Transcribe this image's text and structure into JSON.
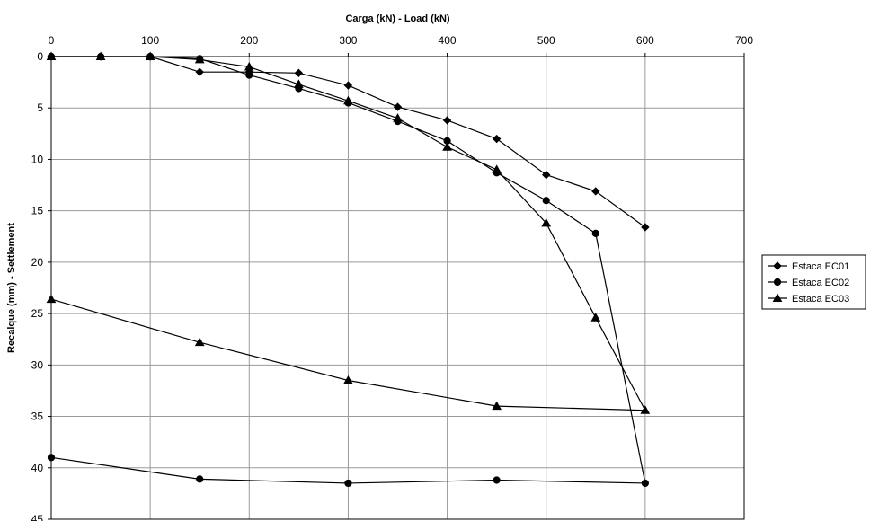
{
  "chart_data": {
    "type": "line",
    "title": "",
    "xlabel": "Carga (kN) - Load (kN)",
    "ylabel": "Recalque (mm) - Settlement",
    "xlim": [
      0,
      700
    ],
    "ylim": [
      0,
      45
    ],
    "y_inverted": true,
    "x_axis_position": "top",
    "xticks": [
      "0",
      "100",
      "200",
      "300",
      "400",
      "500",
      "600",
      "700"
    ],
    "yticks": [
      "0",
      "5",
      "10",
      "15",
      "20",
      "25",
      "30",
      "35",
      "40",
      "45"
    ],
    "grid": true,
    "legend_position": "right",
    "series": [
      {
        "name": "Estaca EC01",
        "marker": "diamond",
        "color": "#000000",
        "points": [
          [
            0,
            0
          ],
          [
            50,
            0
          ],
          [
            100,
            0
          ],
          [
            150,
            1.5
          ],
          [
            200,
            1.5
          ],
          [
            250,
            1.6
          ],
          [
            300,
            2.8
          ],
          [
            350,
            4.9
          ],
          [
            400,
            6.2
          ],
          [
            450,
            8.0
          ],
          [
            500,
            11.5
          ],
          [
            550,
            13.1
          ],
          [
            600,
            16.6
          ]
        ]
      },
      {
        "name": "Estaca EC02",
        "marker": "circle",
        "color": "#000000",
        "points": [
          [
            0,
            0
          ],
          [
            50,
            0
          ],
          [
            100,
            0
          ],
          [
            150,
            0.2
          ],
          [
            200,
            1.8
          ],
          [
            250,
            3.1
          ],
          [
            300,
            4.5
          ],
          [
            350,
            6.3
          ],
          [
            400,
            8.2
          ],
          [
            450,
            11.3
          ],
          [
            500,
            14.0
          ],
          [
            550,
            17.2
          ],
          [
            600,
            41.5
          ],
          [
            450,
            41.2
          ],
          [
            300,
            41.5
          ],
          [
            150,
            41.1
          ],
          [
            0,
            39.0
          ]
        ]
      },
      {
        "name": "Estaca EC03",
        "marker": "triangle",
        "color": "#000000",
        "points": [
          [
            0,
            0
          ],
          [
            50,
            0
          ],
          [
            100,
            0
          ],
          [
            150,
            0.3
          ],
          [
            200,
            1.0
          ],
          [
            250,
            2.7
          ],
          [
            300,
            4.3
          ],
          [
            350,
            6.0
          ],
          [
            400,
            8.8
          ],
          [
            450,
            11.0
          ],
          [
            500,
            16.2
          ],
          [
            550,
            25.4
          ],
          [
            600,
            34.4
          ],
          [
            450,
            34.0
          ],
          [
            300,
            31.5
          ],
          [
            150,
            27.8
          ],
          [
            0,
            23.6
          ]
        ]
      }
    ]
  }
}
